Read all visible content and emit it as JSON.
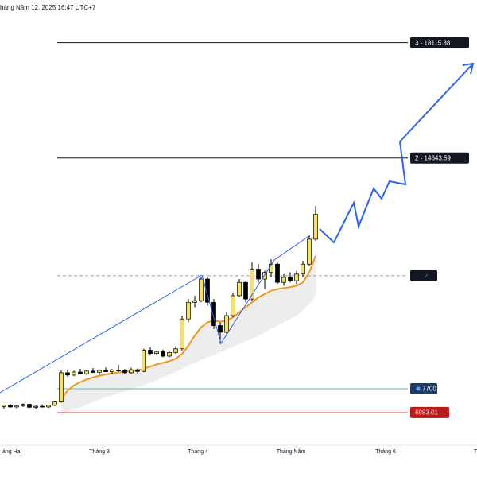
{
  "header": "háng Năm 12, 2025 16:47 UTC+7",
  "chart_data": {
    "type": "candlestick",
    "ylim": [
      6000,
      19400
    ],
    "open": [
      7160,
      7200,
      7150,
      7180,
      7230,
      7140,
      7170,
      7150,
      7200,
      7300,
      8180,
      8110,
      8200,
      8150,
      8230,
      8190,
      8250,
      8210,
      8260,
      8240,
      8180,
      8270,
      8220,
      8860,
      8760,
      8820,
      8680,
      8790,
      8900,
      9800,
      10300,
      10350,
      11000,
      10300,
      9600,
      9400,
      9900,
      10500,
      10900,
      10400,
      11300,
      11000,
      11200,
      11450,
      10900,
      11050,
      10950,
      11150,
      11450,
      12200
    ],
    "high": [
      7220,
      7240,
      7210,
      7260,
      7250,
      7200,
      7230,
      7220,
      7330,
      8250,
      8280,
      8240,
      8300,
      8260,
      8320,
      8280,
      8340,
      8300,
      8420,
      8290,
      8330,
      8310,
      8900,
      8950,
      8850,
      8880,
      8820,
      8980,
      9900,
      10400,
      10500,
      11050,
      11050,
      10400,
      9700,
      10000,
      10600,
      11000,
      10950,
      11500,
      11450,
      11250,
      11600,
      11500,
      11150,
      11200,
      11250,
      11550,
      12300,
      13200
    ],
    "low": [
      7100,
      7130,
      7110,
      7150,
      7120,
      7090,
      7140,
      7120,
      7180,
      7280,
      8060,
      8080,
      8130,
      8100,
      8170,
      8120,
      8200,
      8150,
      8200,
      8130,
      8150,
      8160,
      8200,
      8700,
      8700,
      8640,
      8640,
      8750,
      8850,
      9700,
      10150,
      10300,
      10200,
      9500,
      9050,
      9350,
      9850,
      10450,
      10300,
      10350,
      10900,
      10700,
      11050,
      10850,
      10800,
      10900,
      10850,
      11050,
      11400,
      12150
    ],
    "close": [
      7200,
      7150,
      7180,
      7230,
      7140,
      7170,
      7150,
      7200,
      7300,
      8180,
      8110,
      8200,
      8150,
      8230,
      8190,
      8250,
      8210,
      8260,
      8240,
      8180,
      8270,
      8220,
      8860,
      8760,
      8820,
      8680,
      8790,
      8900,
      9800,
      10300,
      10350,
      11000,
      10300,
      9600,
      9400,
      9900,
      10500,
      10900,
      10400,
      11300,
      11000,
      11200,
      11450,
      10900,
      11050,
      10950,
      11150,
      11450,
      12200,
      12950
    ],
    "up_color": "#f7e15a",
    "down_color": "#000000",
    "ma": {
      "color": "#f0961e",
      "values": [
        null,
        null,
        null,
        null,
        null,
        null,
        null,
        null,
        null,
        7400,
        7650,
        7800,
        7900,
        7980,
        8040,
        8090,
        8130,
        8160,
        8190,
        8210,
        8230,
        8250,
        8300,
        8370,
        8430,
        8480,
        8530,
        8600,
        8750,
        9000,
        9300,
        9550,
        9700,
        9750,
        9720,
        9750,
        9850,
        10000,
        10150,
        10300,
        10450,
        10550,
        10650,
        10700,
        10730,
        10760,
        10800,
        10900,
        11200,
        11700
      ]
    },
    "band_low": {
      "color": "#e6e6e6",
      "values": [
        null,
        null,
        null,
        null,
        null,
        null,
        null,
        null,
        null,
        6900,
        6980,
        7060,
        7140,
        7220,
        7300,
        7380,
        7440,
        7500,
        7560,
        7620,
        7680,
        7740,
        7800,
        7880,
        7960,
        8040,
        8120,
        8200,
        8300,
        8400,
        8480,
        8560,
        8640,
        8720,
        8800,
        8880,
        8960,
        9040,
        9120,
        9200,
        9300,
        9400,
        9500,
        9600,
        9700,
        9800,
        9900,
        10050,
        10250,
        10500
      ]
    },
    "levels": [
      {
        "value": 18115.38,
        "label": "3 - 18115.38",
        "color": "#131722",
        "style": "solid"
      },
      {
        "value": 14643.59,
        "label": "2 - 14643.59",
        "color": "#131722",
        "style": "solid"
      },
      {
        "value": 11100,
        "label": "✓",
        "color": "#9aa0a6",
        "style": "dashed"
      },
      {
        "value": 7700,
        "label": "7700",
        "color": "#4fc3a8",
        "style": "solid"
      },
      {
        "value": 6983.01,
        "label": "6983.01",
        "color": "#e06666",
        "style": "solid"
      }
    ],
    "x_labels": [
      "áng Hai",
      "Tháng 3",
      "Tháng 4",
      "Tháng Năm",
      "Tháng 6",
      "T"
    ]
  }
}
